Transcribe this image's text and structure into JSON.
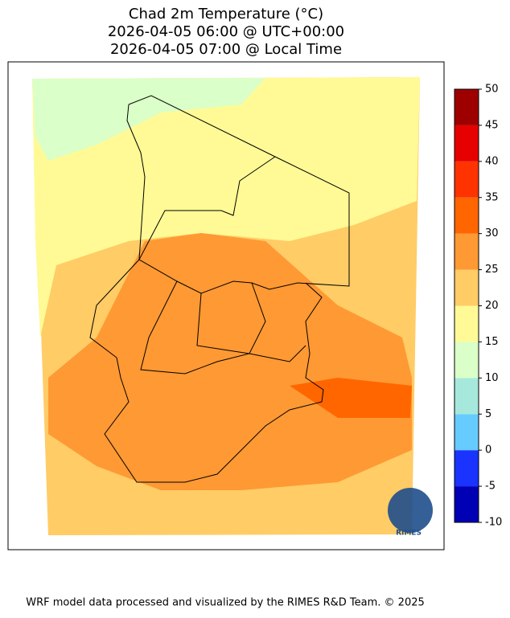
{
  "title": [
    "Chad 2m Temperature (°C)",
    "2026-04-05 06:00 @ UTC+00:00",
    "2026-04-05 07:00 @ Local Time"
  ],
  "colorbar": {
    "lim": [
      -10,
      50
    ],
    "ticks": [
      -10,
      -5,
      0,
      5,
      10,
      15,
      20,
      25,
      30,
      35,
      40,
      45,
      50
    ],
    "colors": [
      "#0000b4",
      "#1a33ff",
      "#66ccff",
      "#a6e8dc",
      "#daffc8",
      "#fffa96",
      "#ffcc66",
      "#ff9933",
      "#ff6600",
      "#ff3300",
      "#e60000",
      "#9e0000"
    ]
  },
  "logo": "RIMES",
  "footer": "WRF model data processed and visualized by the RIMES R&D Team. © 2025"
}
